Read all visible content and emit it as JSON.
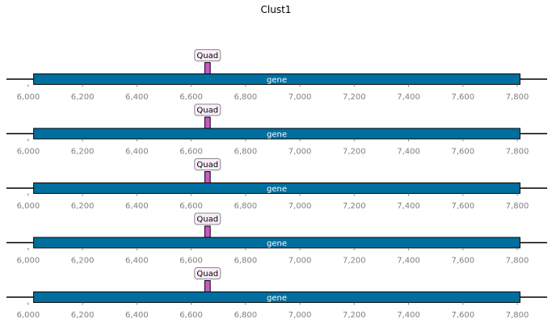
{
  "title": "Clust1",
  "colors": {
    "gene_fill": "#006f9f",
    "quad_fill": "#cc55cc",
    "quad_label_bg": "#fbeefb",
    "axis_line": "#000000",
    "tick_text": "#808080"
  },
  "axis": {
    "range": [
      5920,
      7910
    ],
    "ticks": [
      6000,
      6200,
      6400,
      6600,
      6800,
      7000,
      7200,
      7400,
      7600,
      7800
    ],
    "tick_labels": [
      "6,000",
      "6,200",
      "6,400",
      "6,600",
      "6,800",
      "7,000",
      "7,200",
      "7,400",
      "7,600",
      "7,800"
    ]
  },
  "tracks": [
    {
      "gene": {
        "start": 6020,
        "end": 7810,
        "label": "gene"
      },
      "feature": {
        "start": 6650,
        "end": 6670,
        "label": "Quad"
      }
    },
    {
      "gene": {
        "start": 6020,
        "end": 7810,
        "label": "gene"
      },
      "feature": {
        "start": 6650,
        "end": 6670,
        "label": "Quad"
      }
    },
    {
      "gene": {
        "start": 6020,
        "end": 7810,
        "label": "gene"
      },
      "feature": {
        "start": 6650,
        "end": 6670,
        "label": "Quad"
      }
    },
    {
      "gene": {
        "start": 6020,
        "end": 7810,
        "label": "gene"
      },
      "feature": {
        "start": 6650,
        "end": 6670,
        "label": "Quad"
      }
    },
    {
      "gene": {
        "start": 6020,
        "end": 7810,
        "label": "gene"
      },
      "feature": {
        "start": 6650,
        "end": 6670,
        "label": "Quad"
      }
    }
  ]
}
